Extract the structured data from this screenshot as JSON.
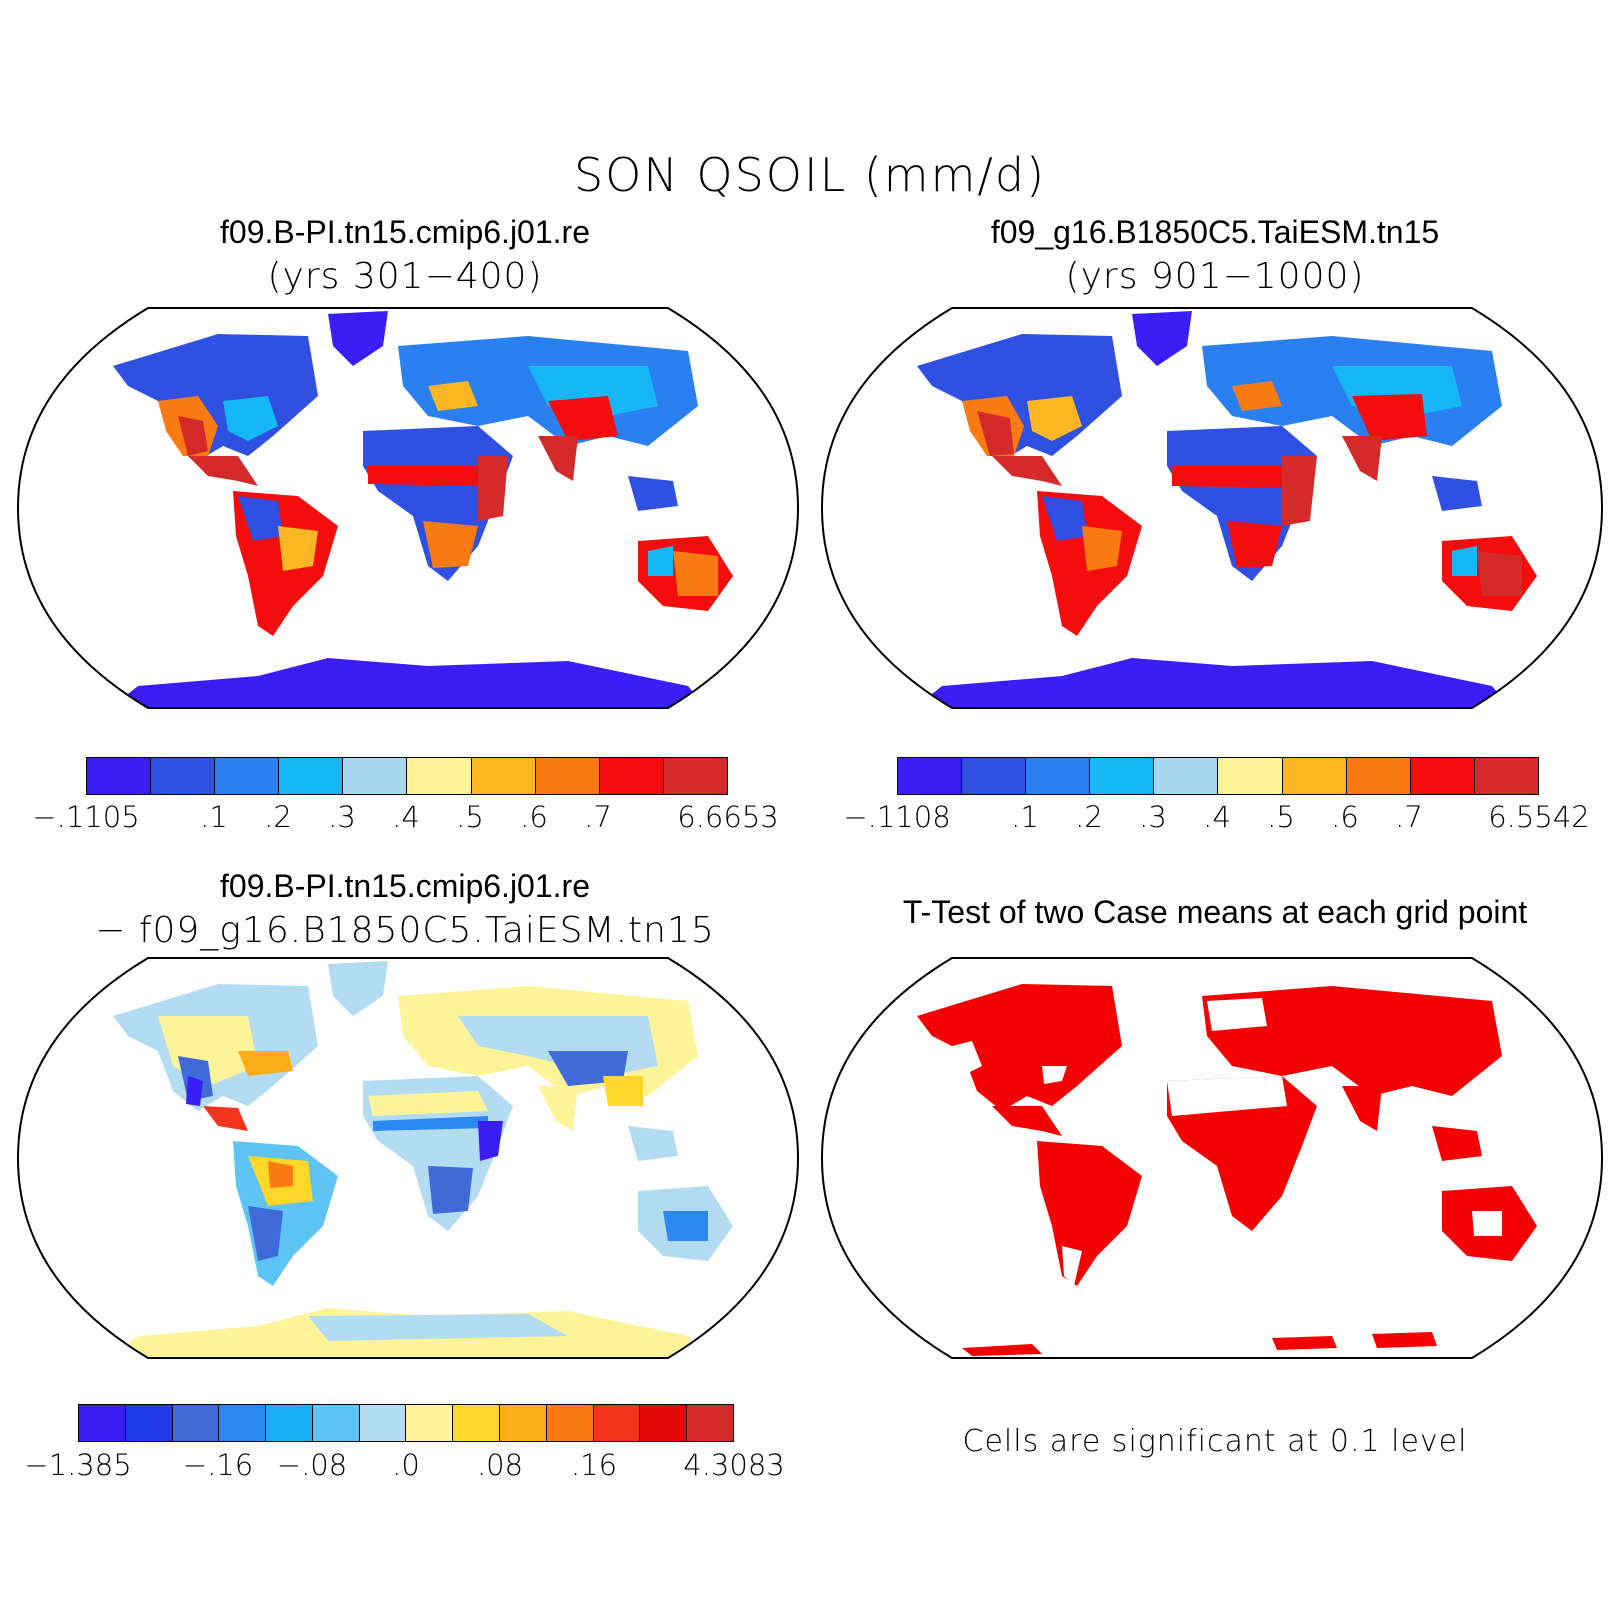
{
  "figure": {
    "title": "SON QSOIL (mm/d)"
  },
  "panels": {
    "top_left": {
      "case": "f09.B-PI.tn15.cmip6.j01.re",
      "years": "(yrs 301−400)",
      "colorbar": {
        "colors": [
          "#3a1ef5",
          "#2f50e0",
          "#2a80f0",
          "#17b6f5",
          "#a6d8f2",
          "#fdf49a",
          "#fbb623",
          "#fb7b13",
          "#f40d0d",
          "#d52a2a"
        ],
        "tick_labels": [
          "−.1105",
          ".1",
          ".2",
          ".3",
          ".4",
          ".5",
          ".6",
          ".7",
          "6.6653"
        ]
      }
    },
    "top_right": {
      "case": "f09_g16.B1850C5.TaiESM.tn15",
      "years": "(yrs 901−1000)",
      "colorbar": {
        "colors": [
          "#3a1ef5",
          "#2f50e0",
          "#2a80f0",
          "#17b6f5",
          "#a6d8f2",
          "#fdf49a",
          "#fbb623",
          "#fb7b13",
          "#f40d0d",
          "#d52a2a"
        ],
        "tick_labels": [
          "−.1108",
          ".1",
          ".2",
          ".3",
          ".4",
          ".5",
          ".6",
          ".7",
          "6.5542"
        ]
      }
    },
    "bottom_left": {
      "case": "f09.B-PI.tn15.cmip6.j01.re",
      "difference_line": "−  f09_g16.B1850C5.TaiESM.tn15",
      "colorbar": {
        "colors": [
          "#3a1ef5",
          "#1f3ae8",
          "#3f6ad8",
          "#2a88f0",
          "#17b0f5",
          "#5ec3f5",
          "#b3dcf2",
          "#fdf49a",
          "#fed72a",
          "#fbae1a",
          "#fb7b13",
          "#f3341c",
          "#e50808",
          "#d52a2a"
        ],
        "tick_labels": [
          "−1.385",
          "−.16",
          "−.08",
          ".0",
          ".08",
          ".16",
          "4.3083"
        ]
      }
    },
    "bottom_right": {
      "title": "T-Test of two Case means at each grid point",
      "note": "Cells are significant at 0.1 level",
      "significant_color": "#f40000"
    }
  }
}
